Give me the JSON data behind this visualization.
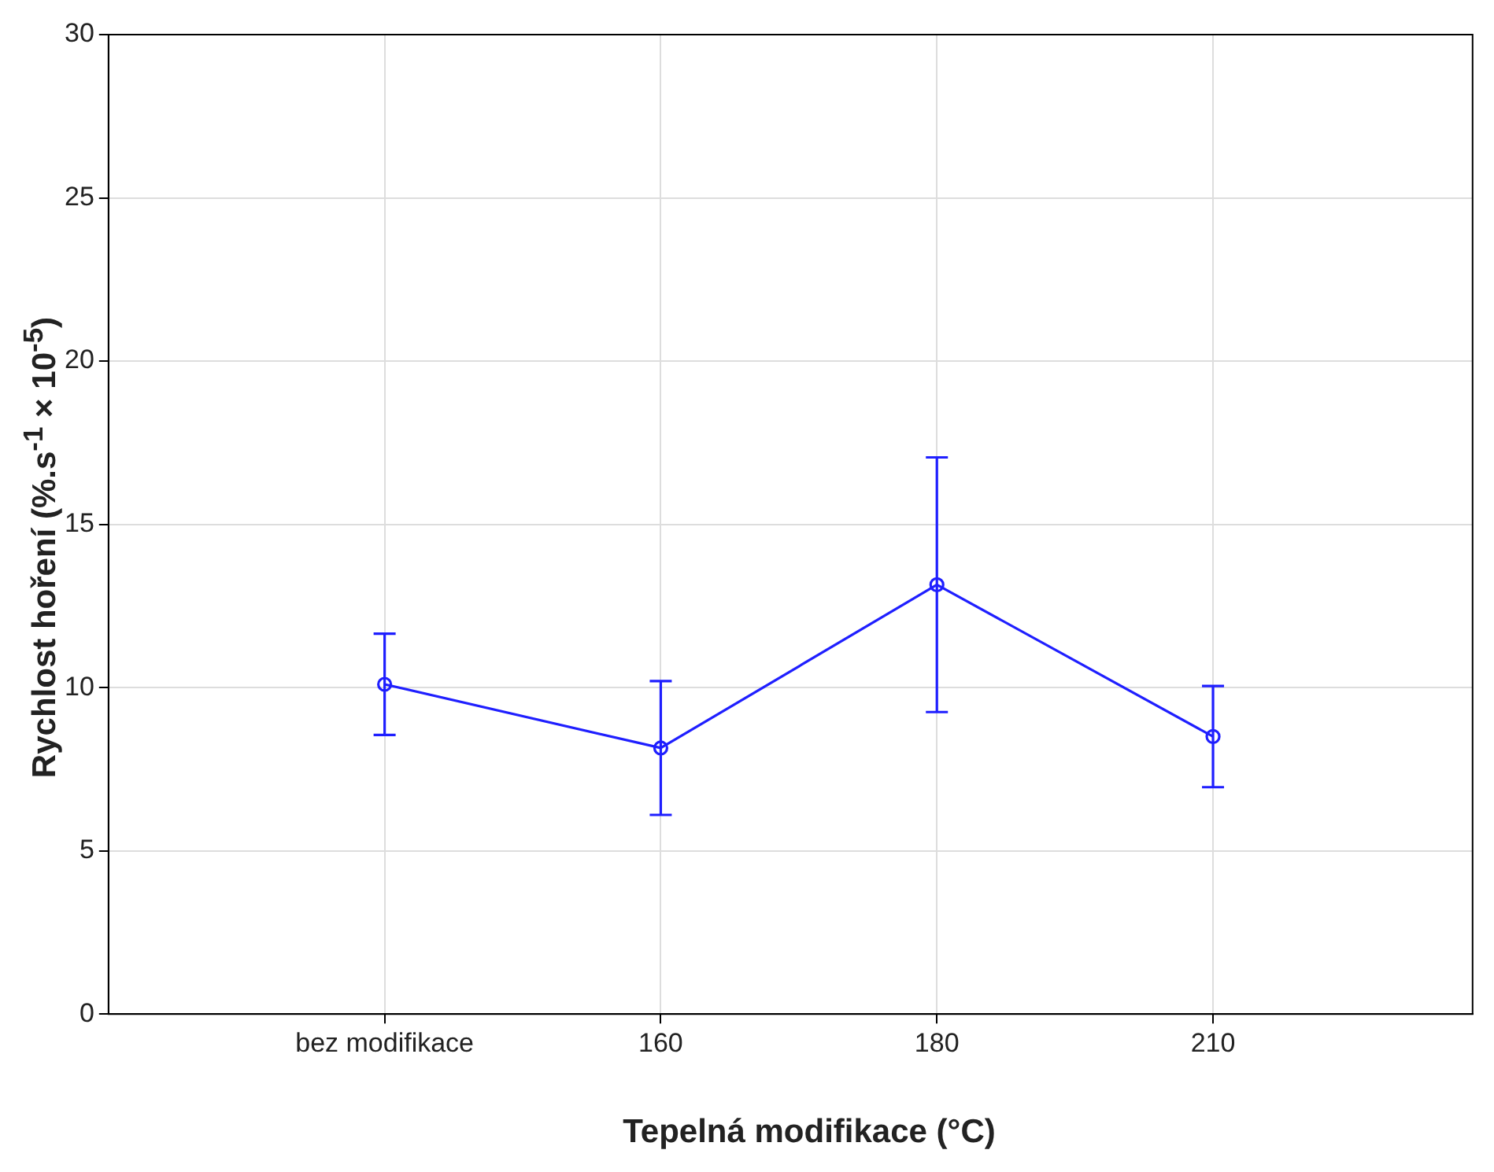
{
  "chart_data": {
    "type": "line",
    "xlabel": "Tepelná modifikace (°C)",
    "ylabel": "Rychlost hoření (%.s$^{-1}$ × 10$^{-5}$)",
    "categories": [
      "bez modifikace",
      "160",
      "180",
      "210"
    ],
    "series": [
      {
        "color": "#1f1fff",
        "values": [
          10.1,
          8.15,
          13.15,
          8.5
        ],
        "errors": [
          1.55,
          2.05,
          3.9,
          1.55
        ]
      }
    ],
    "ylim": [
      0,
      30
    ],
    "yticks": [
      0,
      5,
      10,
      15,
      20,
      25,
      30
    ],
    "grid": true,
    "legend": false,
    "marker": "circle",
    "line_style": "solid"
  }
}
